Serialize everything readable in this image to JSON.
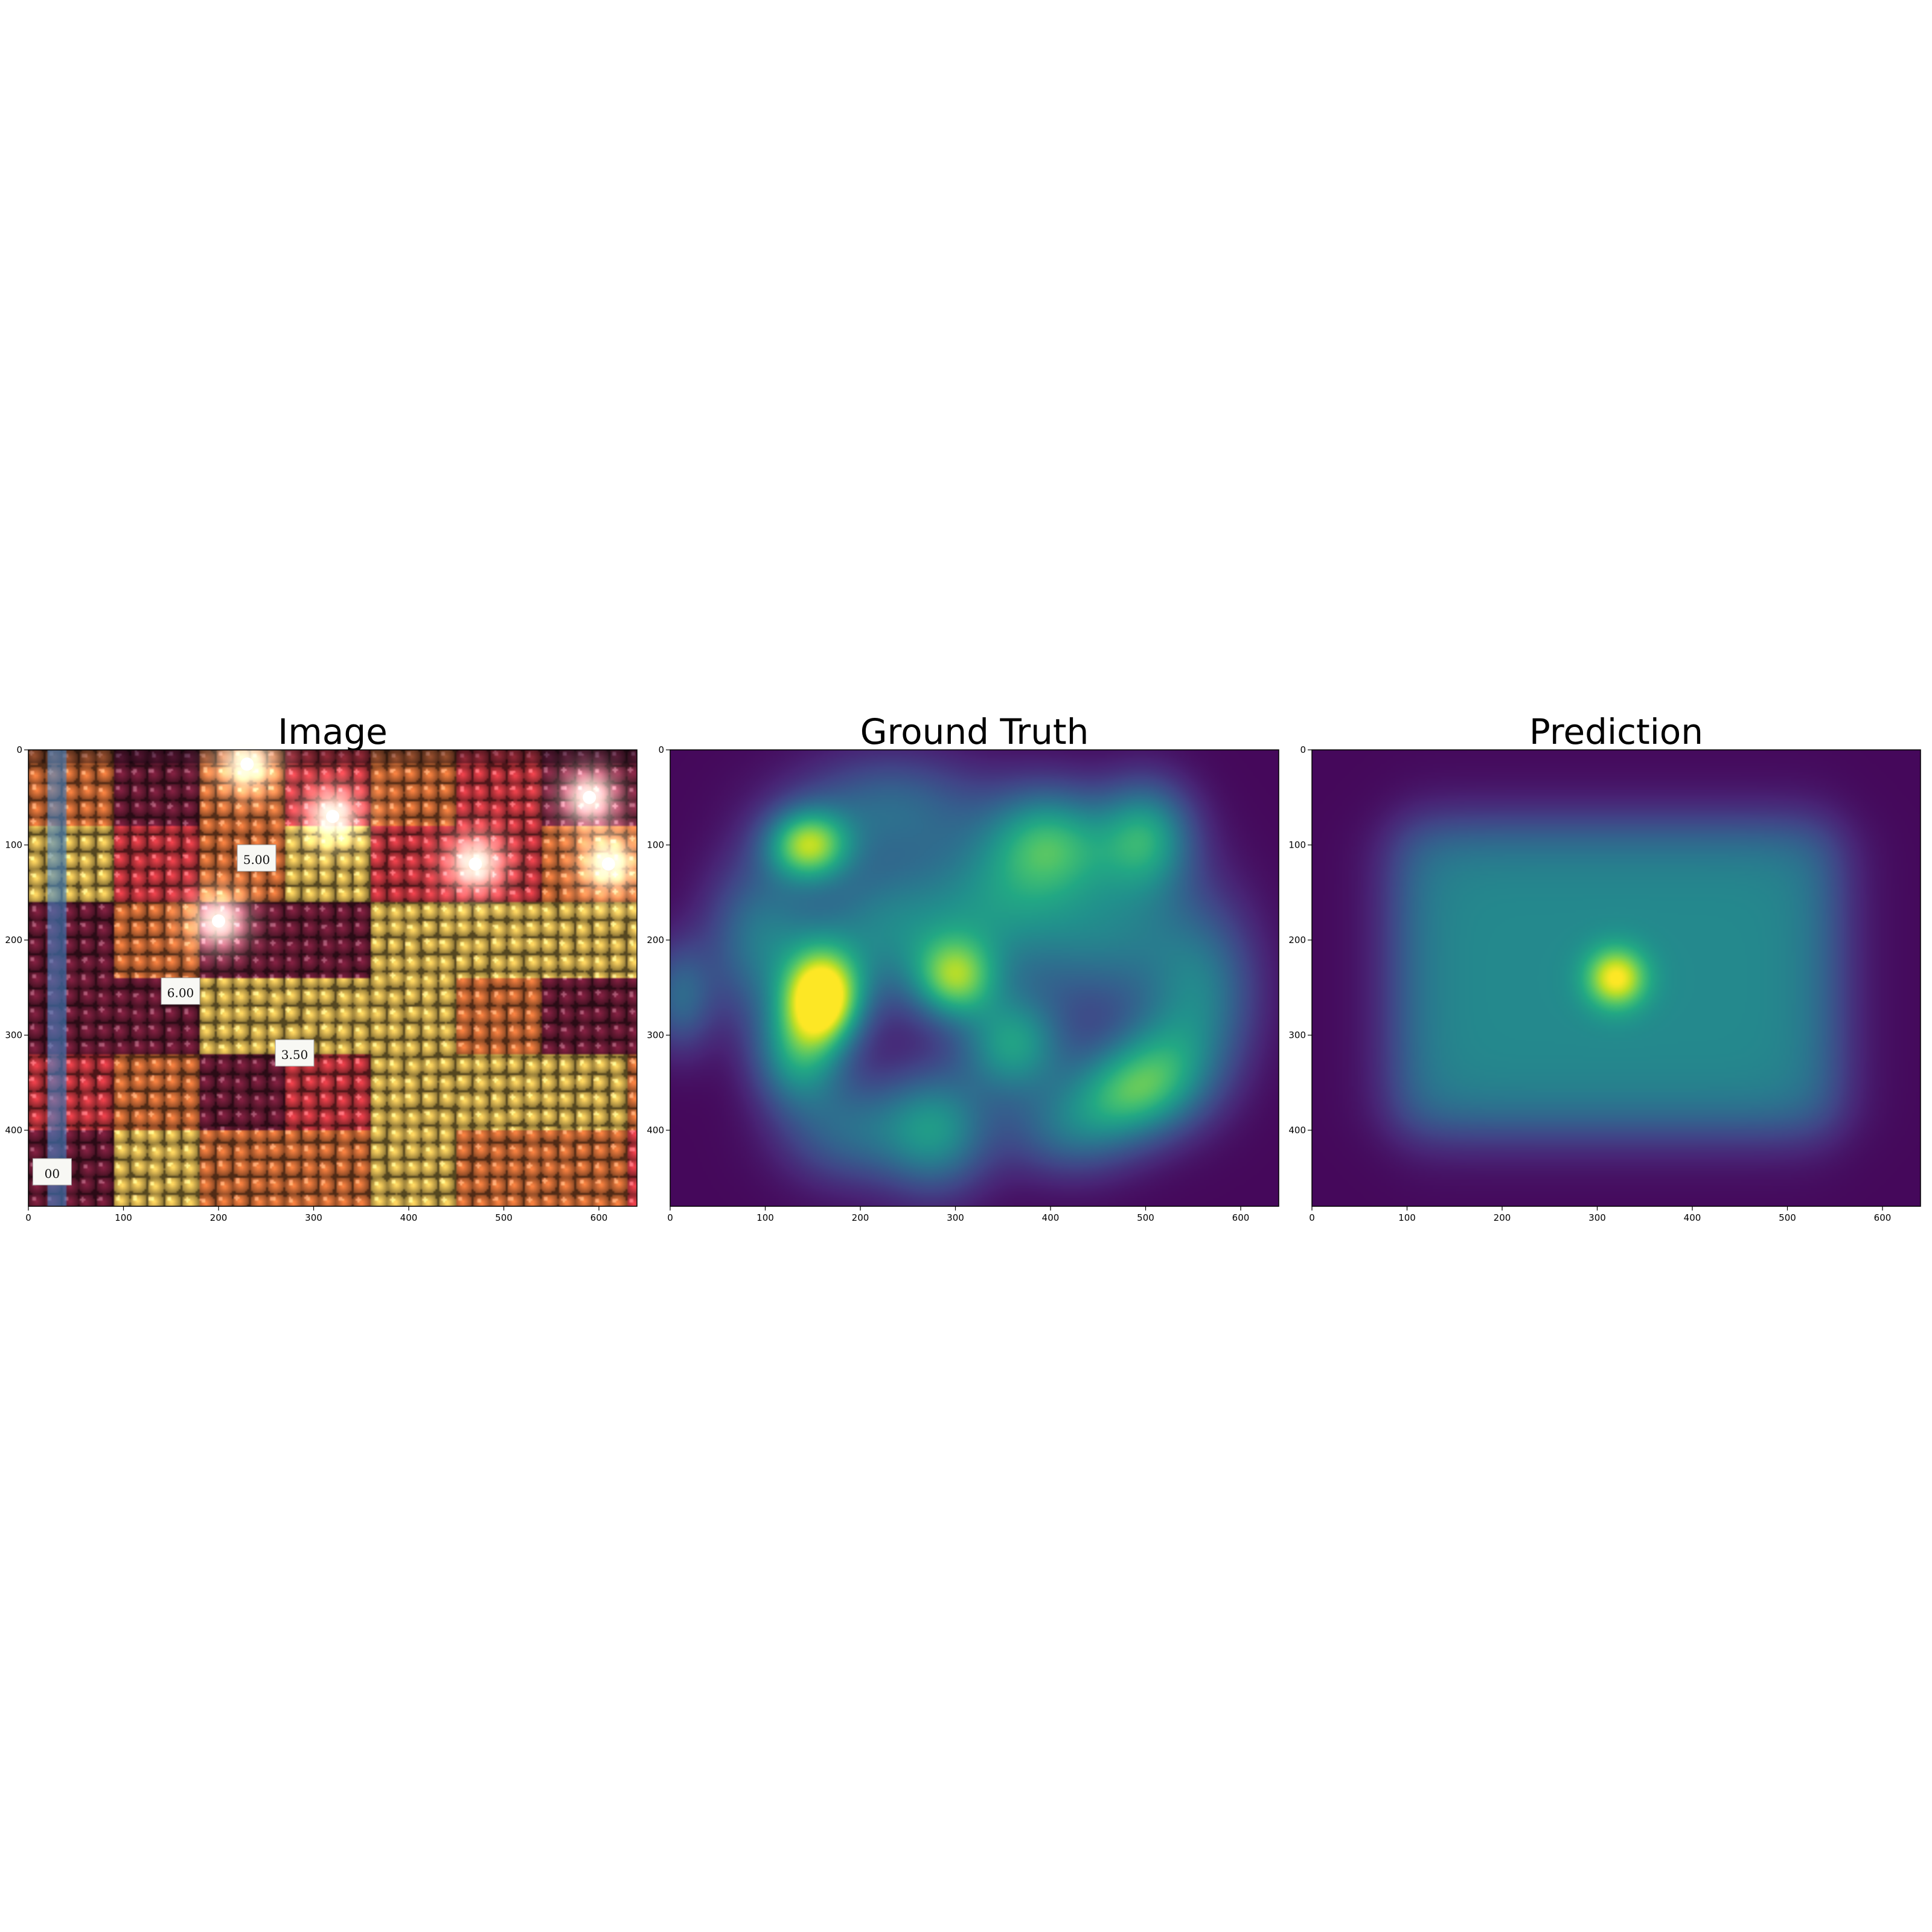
{
  "chart_data": [
    {
      "type": "image",
      "title": "Image",
      "content": "photo",
      "xlim": [
        0,
        640
      ],
      "ylim": [
        480,
        0
      ],
      "xticks": [
        0,
        100,
        200,
        300,
        400,
        500,
        600
      ],
      "yticks": [
        0,
        100,
        200,
        300,
        400
      ],
      "bulbs": [
        [
          230,
          15
        ],
        [
          320,
          70
        ],
        [
          200,
          180
        ],
        [
          470,
          120
        ],
        [
          590,
          50
        ],
        [
          610,
          120
        ]
      ],
      "price_tags": [
        {
          "x": 160,
          "y": 255,
          "text": "6.00"
        },
        {
          "x": 280,
          "y": 320,
          "text": "3.50"
        },
        {
          "x": 240,
          "y": 115,
          "text": "5.00"
        },
        {
          "x": 25,
          "y": 445,
          "text": "00"
        }
      ]
    },
    {
      "type": "heatmap",
      "title": "Ground Truth",
      "colormap": "viridis",
      "xlim": [
        0,
        640
      ],
      "ylim": [
        480,
        0
      ],
      "xticks": [
        0,
        100,
        200,
        300,
        400,
        500,
        600
      ],
      "yticks": [
        0,
        100,
        200,
        300,
        400
      ],
      "blobs": [
        {
          "x": 160,
          "y": 260,
          "sx": 28,
          "sy": 35,
          "v": 1.0
        },
        {
          "x": 145,
          "y": 100,
          "sx": 30,
          "sy": 26,
          "v": 0.72
        },
        {
          "x": 300,
          "y": 240,
          "sx": 30,
          "sy": 30,
          "v": 0.6
        },
        {
          "x": 135,
          "y": 320,
          "sx": 32,
          "sy": 40,
          "v": 0.48
        },
        {
          "x": 400,
          "y": 95,
          "sx": 45,
          "sy": 40,
          "v": 0.5
        },
        {
          "x": 500,
          "y": 90,
          "sx": 35,
          "sy": 40,
          "v": 0.5
        },
        {
          "x": 360,
          "y": 310,
          "sx": 38,
          "sy": 38,
          "v": 0.5
        },
        {
          "x": 480,
          "y": 360,
          "sx": 45,
          "sy": 35,
          "v": 0.48
        },
        {
          "x": 280,
          "y": 400,
          "sx": 40,
          "sy": 45,
          "v": 0.45
        },
        {
          "x": 225,
          "y": 190,
          "sx": 60,
          "sy": 55,
          "v": 0.4
        },
        {
          "x": 95,
          "y": 200,
          "sx": 40,
          "sy": 60,
          "v": 0.36
        },
        {
          "x": 460,
          "y": 190,
          "sx": 70,
          "sy": 60,
          "v": 0.38
        },
        {
          "x": 340,
          "y": 160,
          "sx": 55,
          "sy": 55,
          "v": 0.34
        },
        {
          "x": 560,
          "y": 260,
          "sx": 40,
          "sy": 60,
          "v": 0.33
        },
        {
          "x": 230,
          "y": 60,
          "sx": 70,
          "sy": 40,
          "v": 0.3
        },
        {
          "x": 190,
          "y": 400,
          "sx": 50,
          "sy": 40,
          "v": 0.3
        },
        {
          "x": 420,
          "y": 400,
          "sx": 50,
          "sy": 35,
          "v": 0.3
        },
        {
          "x": 10,
          "y": 260,
          "sx": 25,
          "sy": 40,
          "v": 0.3
        },
        {
          "x": 520,
          "y": 330,
          "sx": 40,
          "sy": 40,
          "v": 0.32
        }
      ]
    },
    {
      "type": "heatmap",
      "title": "Prediction",
      "colormap": "viridis",
      "xlim": [
        0,
        640
      ],
      "ylim": [
        480,
        0
      ],
      "xticks": [
        0,
        100,
        200,
        300,
        400,
        500,
        600
      ],
      "yticks": [
        0,
        100,
        200,
        300,
        400
      ],
      "peak": {
        "x": 320,
        "y": 240,
        "sx": 22,
        "sy": 22,
        "v": 1.0
      },
      "plateau": {
        "x0": 90,
        "x1": 550,
        "y0": 80,
        "y1": 400,
        "v": 0.45,
        "falloff": 55
      }
    }
  ]
}
